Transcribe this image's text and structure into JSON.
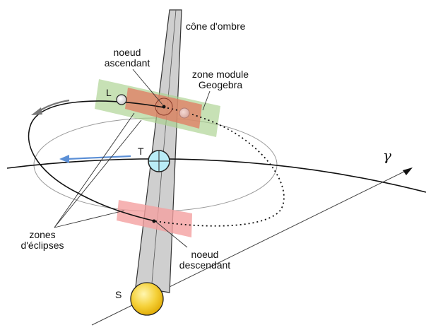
{
  "labels": {
    "shadow_cone": "cône d'ombre",
    "ascending_node_line1": "noeud",
    "ascending_node_line2": "ascendant",
    "geogebra_zone_line1": "zone module",
    "geogebra_zone_line2": "Geogebra",
    "moon": "L",
    "earth": "T",
    "sun": "S",
    "gamma": "γ",
    "eclipse_zones_line1": "zones",
    "eclipse_zones_line2": "d'éclipses",
    "descending_node_line1": "noeud",
    "descending_node_line2": "descendant"
  },
  "colors": {
    "geogebra_zone": "#a9d18e",
    "eclipse_zone": "#f4a0a0",
    "shadow_cone": "#c8c8c8",
    "earth": "#b9ecf7",
    "sun": "#f5c518",
    "direction_arrow": "#5b8fd6",
    "rotation_arrow": "#777777"
  },
  "icons": {
    "earth": "earth-circle",
    "sun": "sun-circle",
    "moon": "moon-circle"
  }
}
